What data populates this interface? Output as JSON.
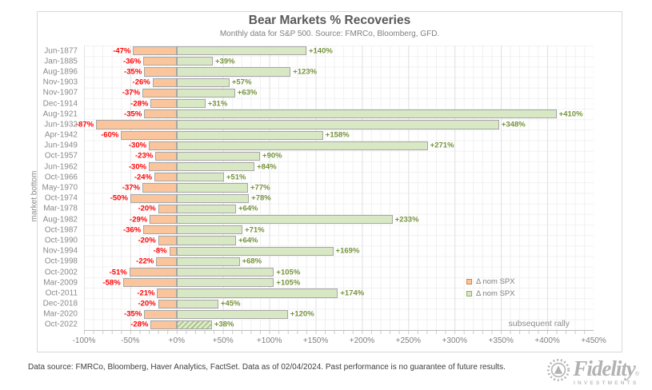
{
  "title": "Bear Markets % Recoveries",
  "subtitle": "Monthly data for S&P 500.  Source: FMRCo, Bloomberg, GFD.",
  "annotation": "subsequent rally",
  "footer": "Data source: FMRCo, Bloomberg, Haver Analytics, FactSet. Data as of 02/04/2024. Past performance is no guarantee of future results.",
  "logo": {
    "brand": "Fidelity",
    "registered_mark": "®",
    "sub": "INVESTMENTS"
  },
  "legend": {
    "position": "right-middle",
    "items": [
      {
        "label": "Δ nom SPX",
        "swatch_color": "#FAC59C",
        "swatch_border": "#C98A4E"
      },
      {
        "label": "Δ nom SPX",
        "swatch_color": "#D8E8C5",
        "swatch_border": "#93AE68"
      }
    ]
  },
  "colors": {
    "decline_fill": "#FAC59C",
    "rally_fill": "#D8E8C5",
    "bar_border": "#A6A6A6",
    "negative_label": "#FF0000",
    "positive_label": "#76933C",
    "axis_text": "#7F7F7F"
  },
  "chart_data": {
    "type": "bar",
    "orientation": "horizontal",
    "title": "Bear Markets % Recoveries",
    "ylabel": "market bottom",
    "xlabel": "",
    "value_suffix": "%",
    "xlim": [
      -100,
      450
    ],
    "xtick_values": [
      -100,
      -50,
      0,
      50,
      100,
      150,
      200,
      250,
      300,
      350,
      400,
      450
    ],
    "xtick_labels": [
      "-100%",
      "-50%",
      "+0%",
      "+50%",
      "+100%",
      "+150%",
      "+200%",
      "+250%",
      "+300%",
      "+350%",
      "+400%",
      "+450%"
    ],
    "grid": "minor vertical every 10%, major vertical every 50%, horizontal per row",
    "legend_position": "right-middle",
    "hatched_category": "Oct-2022",
    "categories": [
      "Jun-1877",
      "Jan-1885",
      "Aug-1896",
      "Nov-1903",
      "Nov-1907",
      "Dec-1914",
      "Aug-1921",
      "Jun-1932",
      "Apr-1942",
      "Jun-1949",
      "Oct-1957",
      "Jun-1962",
      "Oct-1966",
      "May-1970",
      "Oct-1974",
      "Mar-1978",
      "Aug-1982",
      "Oct-1987",
      "Oct-1990",
      "Nov-1994",
      "Oct-1998",
      "Oct-2002",
      "Mar-2009",
      "Oct-2011",
      "Dec-2018",
      "Mar-2020",
      "Oct-2022"
    ],
    "series": [
      {
        "name": "Δ nom SPX",
        "role": "bear market decline",
        "color": "#FAC59C",
        "values": [
          -47,
          -36,
          -35,
          -26,
          -37,
          -28,
          -35,
          -87,
          -60,
          -30,
          -23,
          -30,
          -24,
          -37,
          -50,
          -20,
          -29,
          -36,
          -20,
          -8,
          -22,
          -51,
          -58,
          -21,
          -20,
          -35,
          -28
        ]
      },
      {
        "name": "Δ nom SPX",
        "role": "subsequent rally",
        "color": "#D8E8C5",
        "values": [
          140,
          39,
          123,
          57,
          63,
          31,
          410,
          348,
          158,
          271,
          90,
          84,
          51,
          77,
          78,
          64,
          233,
          71,
          64,
          169,
          68,
          105,
          105,
          174,
          45,
          120,
          38
        ]
      }
    ]
  }
}
